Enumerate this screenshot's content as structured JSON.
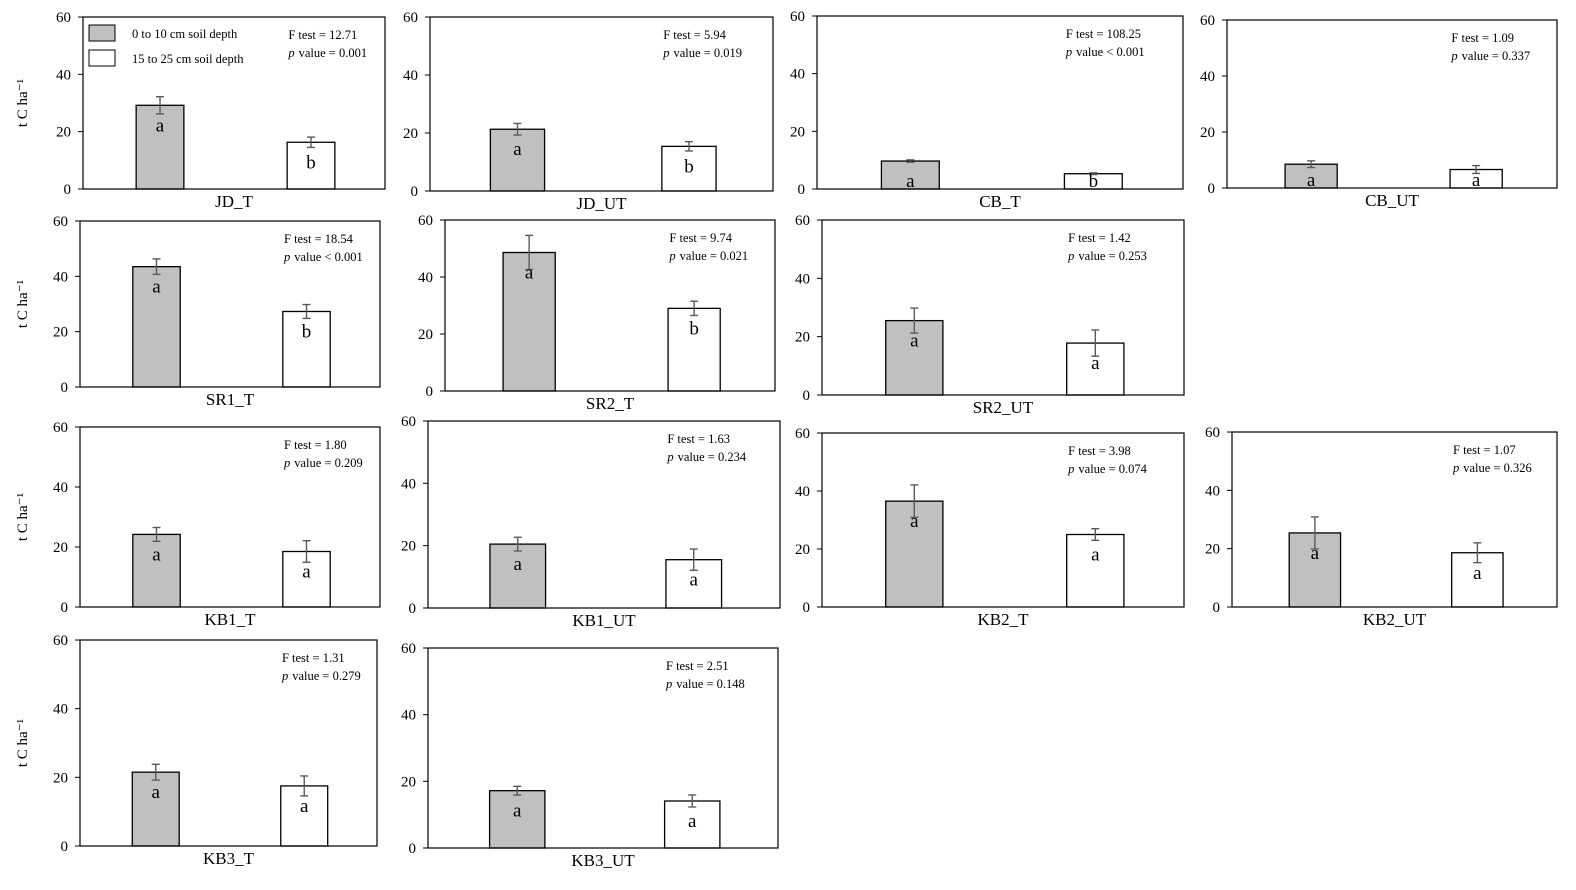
{
  "figure": {
    "ylabel": "t C ha⁻¹",
    "y_ticks": [
      "0",
      "20",
      "40",
      "60"
    ],
    "legend": [
      {
        "label": "0 to 10 cm soil depth",
        "color": "#c0c0c0"
      },
      {
        "label": "15 to 25 cm soil depth",
        "color": "#ffffff"
      }
    ],
    "colors": {
      "shallow": "#c0c0c0",
      "deep": "#ffffff",
      "stroke": "#000000",
      "error_bar": "#5a5a5a"
    }
  },
  "chart_data": [
    {
      "type": "bar",
      "title": "JD_T",
      "categories": [
        "0 to 10 cm soil depth",
        "15 to 25 cm soil depth"
      ],
      "values": [
        29.2,
        16.3
      ],
      "errors": [
        3.0,
        1.8
      ],
      "letters": [
        "a",
        "b"
      ],
      "f_test": "F test = 12.71",
      "p_value": "value = 0.001",
      "ylim": [
        0,
        60
      ]
    },
    {
      "type": "bar",
      "title": "JD_UT",
      "categories": [
        "0 to 10 cm soil depth",
        "15 to 25 cm soil depth"
      ],
      "values": [
        21.3,
        15.4
      ],
      "errors": [
        2.0,
        1.6
      ],
      "letters": [
        "a",
        "b"
      ],
      "f_test": "F test = 5.94",
      "p_value": "value = 0.019",
      "ylim": [
        0,
        60
      ]
    },
    {
      "type": "bar",
      "title": "CB_T",
      "categories": [
        "0 to 10 cm soil depth",
        "15 to 25 cm soil depth"
      ],
      "values": [
        9.7,
        5.3
      ],
      "errors": [
        0.4,
        0.3
      ],
      "letters": [
        "a",
        "b"
      ],
      "f_test": "F test = 108.25",
      "p_value": "value < 0.001",
      "ylim": [
        0,
        60
      ]
    },
    {
      "type": "bar",
      "title": "CB_UT",
      "categories": [
        "0 to 10 cm soil depth",
        "15 to 25 cm soil depth"
      ],
      "values": [
        8.5,
        6.6
      ],
      "errors": [
        1.2,
        1.4
      ],
      "letters": [
        "a",
        "a"
      ],
      "f_test": "F test = 1.09",
      "p_value": "value = 0.337",
      "ylim": [
        0,
        60
      ]
    },
    {
      "type": "bar",
      "title": "SR1_T",
      "categories": [
        "0 to 10 cm soil depth",
        "15 to 25 cm soil depth"
      ],
      "values": [
        43.5,
        27.3
      ],
      "errors": [
        2.8,
        2.5
      ],
      "letters": [
        "a",
        "b"
      ],
      "f_test": "F test = 18.54",
      "p_value": "value < 0.001",
      "ylim": [
        0,
        60
      ]
    },
    {
      "type": "bar",
      "title": "SR2_T",
      "categories": [
        "0 to 10 cm soil depth",
        "15 to 25 cm soil depth"
      ],
      "values": [
        48.6,
        29.0
      ],
      "errors": [
        6.0,
        2.5
      ],
      "letters": [
        "a",
        "b"
      ],
      "f_test": "F test = 9.74",
      "p_value": "value = 0.021",
      "ylim": [
        0,
        60
      ]
    },
    {
      "type": "bar",
      "title": "SR2_UT",
      "categories": [
        "0 to 10 cm soil depth",
        "15 to 25 cm soil depth"
      ],
      "values": [
        25.5,
        17.8
      ],
      "errors": [
        4.3,
        4.5
      ],
      "letters": [
        "a",
        "a"
      ],
      "f_test": "F test = 1.42",
      "p_value": "value = 0.253",
      "ylim": [
        0,
        60
      ]
    },
    {
      "type": "bar",
      "title": "KB1_T",
      "categories": [
        "0 to 10 cm soil depth",
        "15 to 25 cm soil depth"
      ],
      "values": [
        24.2,
        18.5
      ],
      "errors": [
        2.3,
        3.6
      ],
      "letters": [
        "a",
        "a"
      ],
      "f_test": "F test =  1.80",
      "p_value": "value = 0.209",
      "ylim": [
        0,
        60
      ]
    },
    {
      "type": "bar",
      "title": "KB1_UT",
      "categories": [
        "0 to 10 cm soil depth",
        "15 to 25 cm soil depth"
      ],
      "values": [
        20.5,
        15.5
      ],
      "errors": [
        2.2,
        3.4
      ],
      "letters": [
        "a",
        "a"
      ],
      "f_test": "F test =  1.63",
      "p_value": "value = 0.234",
      "ylim": [
        0,
        60
      ]
    },
    {
      "type": "bar",
      "title": "KB2_T",
      "categories": [
        "0 to 10 cm soil depth",
        "15 to 25 cm soil depth"
      ],
      "values": [
        36.5,
        25.0
      ],
      "errors": [
        5.6,
        2.0
      ],
      "letters": [
        "a",
        "a"
      ],
      "f_test": "F test =  3.98",
      "p_value": "value = 0.074",
      "ylim": [
        0,
        60
      ]
    },
    {
      "type": "bar",
      "title": "KB2_UT",
      "categories": [
        "0 to 10 cm soil depth",
        "15 to 25 cm soil depth"
      ],
      "values": [
        25.4,
        18.6
      ],
      "errors": [
        5.5,
        3.4
      ],
      "letters": [
        "a",
        "a"
      ],
      "f_test": "F test =  1.07",
      "p_value": "value = 0.326",
      "ylim": [
        0,
        60
      ]
    },
    {
      "type": "bar",
      "title": "KB3_T",
      "categories": [
        "0 to 10 cm soil depth",
        "15 to 25 cm soil depth"
      ],
      "values": [
        21.5,
        17.5
      ],
      "errors": [
        2.3,
        2.9
      ],
      "letters": [
        "a",
        "a"
      ],
      "f_test": "F test =  1.31",
      "p_value": "value = 0.279",
      "ylim": [
        0,
        60
      ]
    },
    {
      "type": "bar",
      "title": "KB3_UT",
      "categories": [
        "0 to 10 cm soil depth",
        "15 to 25 cm soil depth"
      ],
      "values": [
        17.2,
        14.1
      ],
      "errors": [
        1.3,
        1.8
      ],
      "letters": [
        "a",
        "a"
      ],
      "f_test": "F test =  2.51",
      "p_value": "value = 0.148",
      "ylim": [
        0,
        60
      ]
    }
  ]
}
